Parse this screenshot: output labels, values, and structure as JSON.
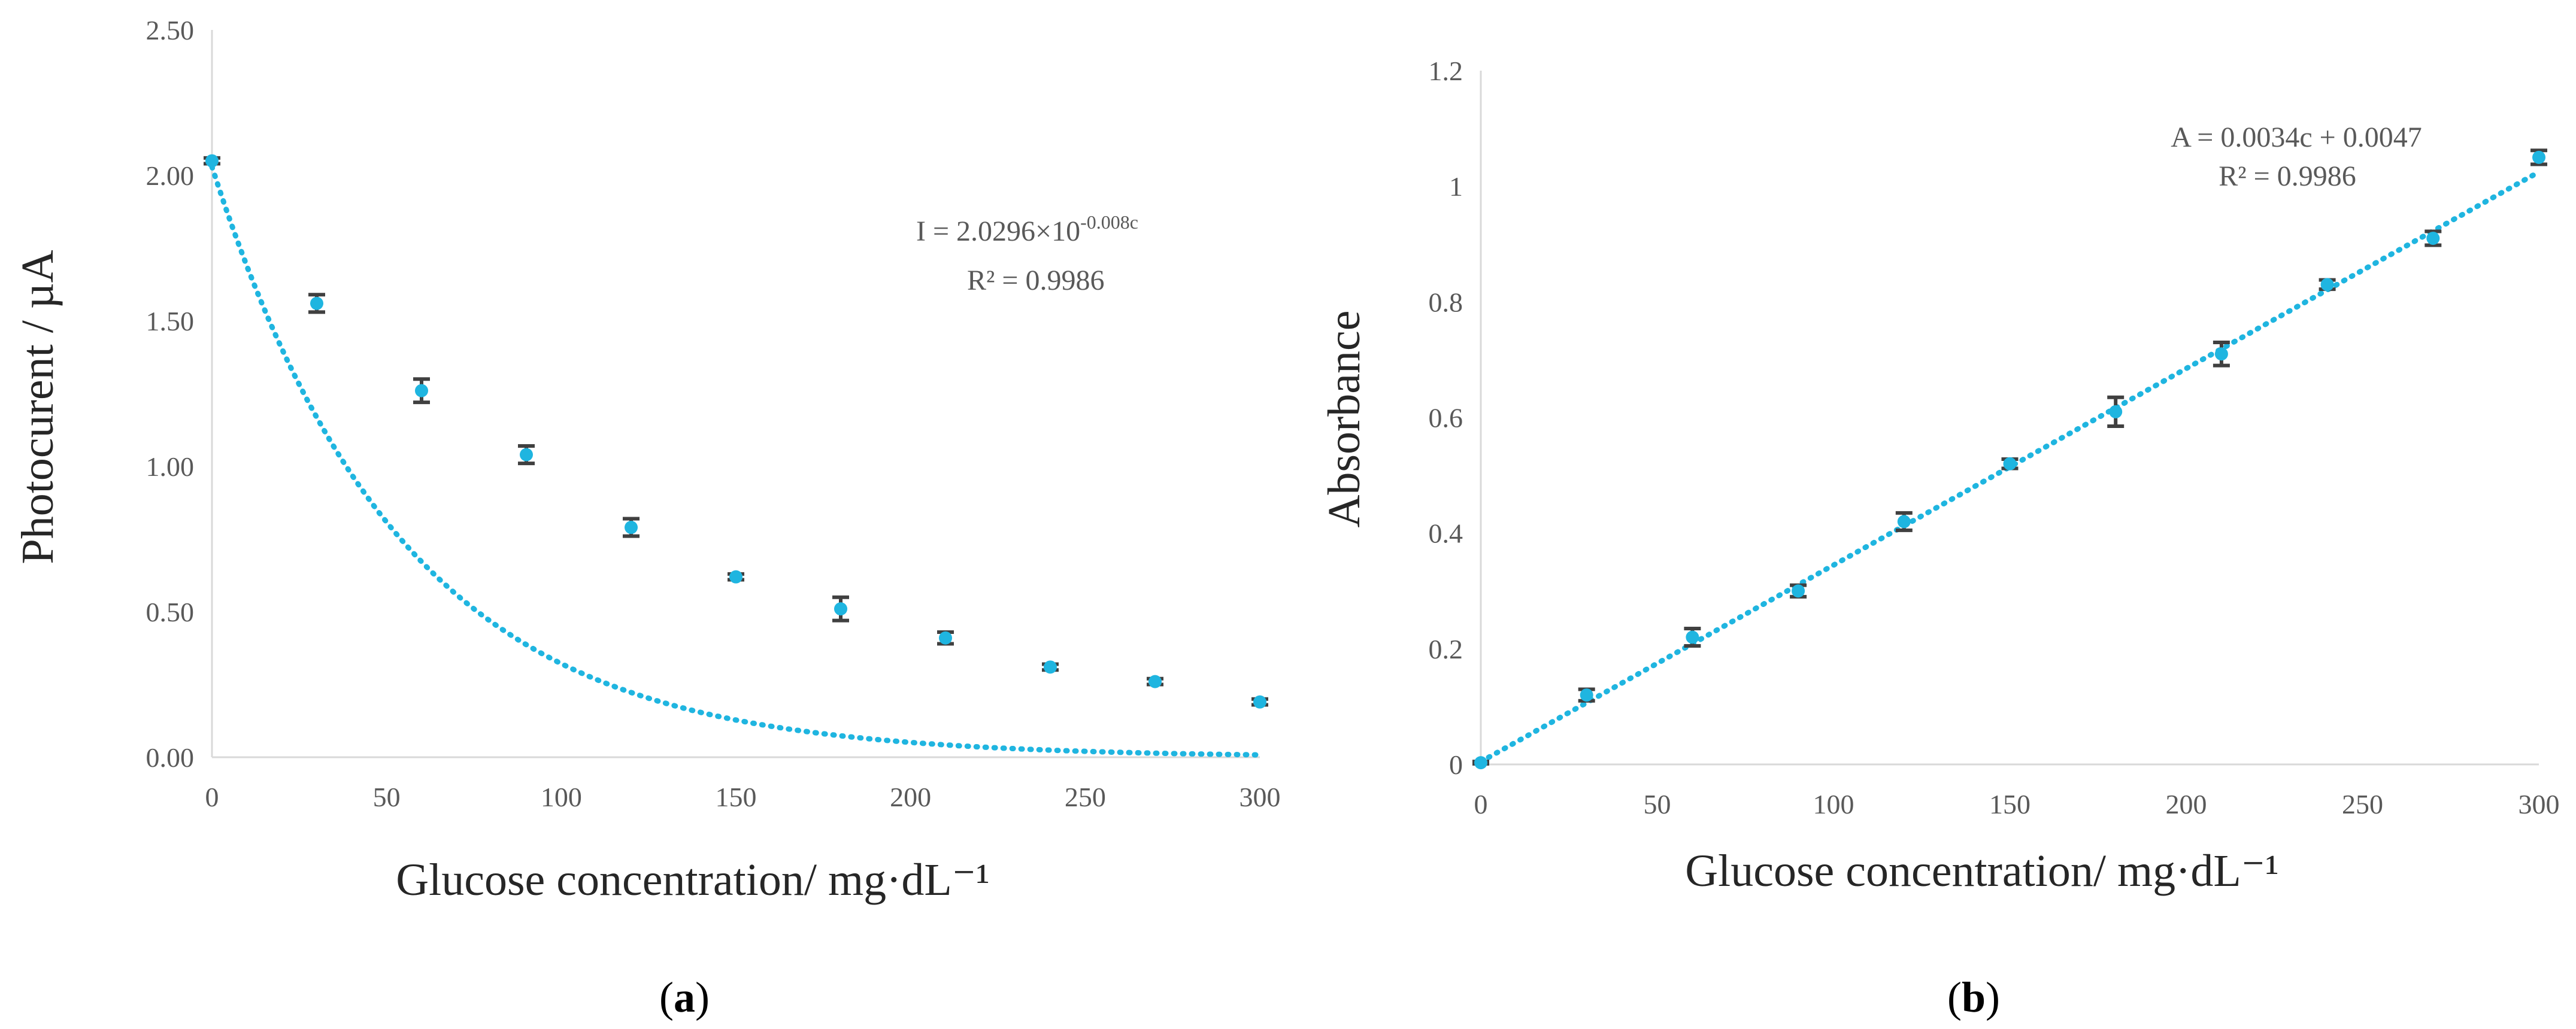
{
  "colors": {
    "series": "#1fb5e0",
    "errorbar": "#404040",
    "axis": "#d9d9d9",
    "tick_text": "#595959"
  },
  "chart_data": [
    {
      "type": "scatter",
      "panel_label": "a",
      "xlabel": "Glucose concentration/ mg·dL⁻¹",
      "ylabel": "Photocurent / µA",
      "xlim": [
        0,
        300
      ],
      "ylim": [
        0,
        2.5
      ],
      "x_ticks": [
        0,
        50,
        100,
        150,
        200,
        250,
        300
      ],
      "y_ticks": [
        0.0,
        0.5,
        1.0,
        1.5,
        2.0,
        2.5
      ],
      "y_tick_labels": [
        "0.00",
        "0.50",
        "1.00",
        "1.50",
        "2.00",
        "2.50"
      ],
      "series": [
        {
          "name": "Photocurrent",
          "x": [
            0,
            30,
            60,
            90,
            120,
            150,
            180,
            210,
            240,
            270,
            300
          ],
          "y": [
            2.05,
            1.56,
            1.26,
            1.04,
            0.79,
            0.62,
            0.51,
            0.41,
            0.31,
            0.26,
            0.19
          ],
          "error": [
            0.01,
            0.03,
            0.04,
            0.03,
            0.03,
            0.01,
            0.04,
            0.02,
            0.01,
            0.01,
            0.01
          ]
        }
      ],
      "trendline": {
        "type": "exponential",
        "a": 2.0296,
        "b": 0.008
      },
      "equation_main": "I = 2.0296×10",
      "equation_exp": "-0.008c",
      "r_squared": "R² = 0.9986"
    },
    {
      "type": "scatter",
      "panel_label": "b",
      "xlabel": "Glucose concentration/ mg·dL⁻¹",
      "ylabel": "Absorbance",
      "xlim": [
        0,
        300
      ],
      "ylim": [
        0,
        1.2
      ],
      "x_ticks": [
        0,
        50,
        100,
        150,
        200,
        250,
        300
      ],
      "y_ticks": [
        0,
        0.2,
        0.4,
        0.6,
        0.8,
        1.0,
        1.2
      ],
      "y_tick_labels": [
        "0",
        "0.2",
        "0.4",
        "0.6",
        "0.8",
        "1",
        "1.2"
      ],
      "series": [
        {
          "name": "Absorbance",
          "x": [
            0,
            30,
            60,
            90,
            120,
            150,
            180,
            210,
            240,
            270,
            300
          ],
          "y": [
            0.003,
            0.12,
            0.22,
            0.3,
            0.42,
            0.52,
            0.61,
            0.71,
            0.83,
            0.91,
            1.05
          ],
          "error": [
            0.002,
            0.01,
            0.015,
            0.01,
            0.015,
            0.008,
            0.025,
            0.02,
            0.008,
            0.012,
            0.012
          ]
        }
      ],
      "trendline": {
        "type": "linear",
        "slope": 0.0034,
        "intercept": 0.0047
      },
      "equation_main": "A = 0.0034c + 0.0047",
      "r_squared": "R² = 0.9986"
    }
  ]
}
